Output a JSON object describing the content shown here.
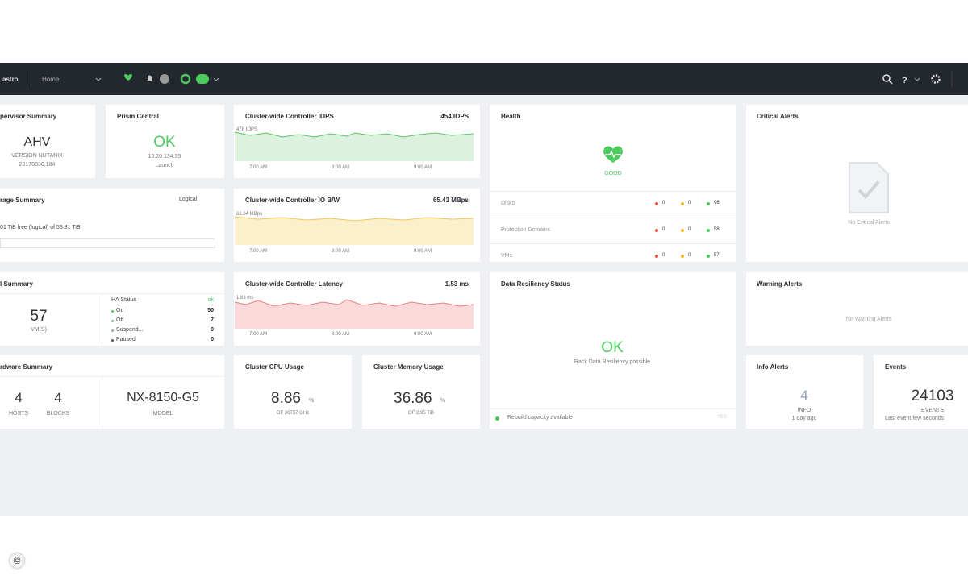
{
  "navbar": {
    "brand": "astro",
    "menu": "Home"
  },
  "widgets": {
    "hypervisor": {
      "title": "pervisor Summary",
      "name": "AHV",
      "version": "VERSION NUTANIX",
      "build": "20170830.184"
    },
    "prism_central": {
      "title": "Prism Central",
      "status": "OK",
      "ip": "10.20.134.35",
      "link": "Launch"
    },
    "storage": {
      "title": "rage Summary",
      "mode": "Logical",
      "text": "01 TiB free (logical) of 58.81 TiB"
    },
    "vm": {
      "title": "l Summary",
      "count": 57,
      "count_label": "VM(S)",
      "ha_label": "HA Status",
      "ha_status": "ok",
      "rows": [
        {
          "label": "On",
          "value": 50
        },
        {
          "label": "Off",
          "value": 7
        },
        {
          "label": "Suspend...",
          "value": 0
        },
        {
          "label": "Paused",
          "value": 0
        }
      ]
    },
    "hardware": {
      "title": "rdware Summary",
      "hosts": 4,
      "hosts_label": "HOSTS",
      "blocks": 4,
      "blocks_label": "BLOCKS",
      "model": "NX-8150-G5",
      "model_label": "MODEL"
    },
    "iops": {
      "title": "Cluster-wide Controller IOPS",
      "current": "454 IOPS",
      "peak": "478 IOPS",
      "times": [
        "7:00 AM",
        "8:00 AM",
        "9:00 AM"
      ]
    },
    "io_bw": {
      "title": "Cluster-wide Controller IO B/W",
      "current": "65.43 MBps",
      "peak": "66.64 MBps",
      "times": [
        "7:00 AM",
        "8:00 AM",
        "9:00 AM"
      ]
    },
    "latency": {
      "title": "Cluster-wide Controller Latency",
      "current": "1.53 ms",
      "peak": "1.83 ms",
      "times": [
        "7:00 AM",
        "8:00 AM",
        "9:00 AM"
      ]
    },
    "cpu": {
      "title": "Cluster CPU Usage",
      "value": "8.86",
      "unit": "%",
      "sub": "OF 36757 GHz"
    },
    "memory": {
      "title": "Cluster Memory Usage",
      "value": "36.86",
      "unit": "%",
      "sub": "OF 2.95 TiB"
    },
    "health": {
      "title": "Health",
      "status": "GOOD",
      "rows": [
        {
          "label": "Disks",
          "red": 0,
          "yellow": 0,
          "green": 96
        },
        {
          "label": "Protection Domains",
          "red": 0,
          "yellow": 0,
          "green": 58
        },
        {
          "label": "VMs",
          "red": 0,
          "yellow": 0,
          "green": 57
        }
      ]
    },
    "resiliency": {
      "title": "Data Resiliency Status",
      "status": "OK",
      "text": "Rack Data Resiliency possible",
      "footer": "Rebuild capacity available",
      "footer_value": "YES"
    },
    "critical": {
      "title": "Critical Alerts",
      "text": "No Critical Alerts"
    },
    "warning": {
      "title": "Warning Alerts",
      "text": "No Warning Alerts"
    },
    "info": {
      "title": "Info Alerts",
      "count": 4,
      "label": "INFO",
      "time": "1 day ago"
    },
    "events": {
      "title": "Events",
      "count": 24103,
      "label": "EVENTS",
      "time": "Last event few seconds"
    }
  },
  "copyright": "©"
}
